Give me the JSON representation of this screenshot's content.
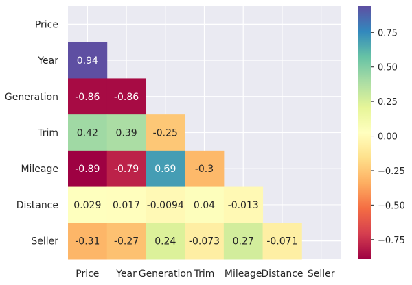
{
  "chart_data": {
    "type": "heatmap",
    "title": "",
    "xlabel": "",
    "ylabel": "",
    "rows": [
      "Price",
      "Year",
      "Generation",
      "Trim",
      "Mileage",
      "Distance",
      "Seller"
    ],
    "columns": [
      "Price",
      "Year",
      "Generation",
      "Trim",
      "Mileage",
      "Distance",
      "Seller"
    ],
    "mask": "upper-triangle-including-diagonal",
    "cells": [
      {
        "row": 1,
        "col": 0,
        "value": 0.94,
        "label": "0.94"
      },
      {
        "row": 2,
        "col": 0,
        "value": -0.86,
        "label": "-0.86"
      },
      {
        "row": 2,
        "col": 1,
        "value": -0.86,
        "label": "-0.86"
      },
      {
        "row": 3,
        "col": 0,
        "value": 0.42,
        "label": "0.42"
      },
      {
        "row": 3,
        "col": 1,
        "value": 0.39,
        "label": "0.39"
      },
      {
        "row": 3,
        "col": 2,
        "value": -0.25,
        "label": "-0.25"
      },
      {
        "row": 4,
        "col": 0,
        "value": -0.89,
        "label": "-0.89"
      },
      {
        "row": 4,
        "col": 1,
        "value": -0.79,
        "label": "-0.79"
      },
      {
        "row": 4,
        "col": 2,
        "value": 0.69,
        "label": "0.69"
      },
      {
        "row": 4,
        "col": 3,
        "value": -0.3,
        "label": "-0.3"
      },
      {
        "row": 5,
        "col": 0,
        "value": 0.029,
        "label": "0.029"
      },
      {
        "row": 5,
        "col": 1,
        "value": 0.017,
        "label": "0.017"
      },
      {
        "row": 5,
        "col": 2,
        "value": -0.0094,
        "label": "-0.0094"
      },
      {
        "row": 5,
        "col": 3,
        "value": 0.04,
        "label": "0.04"
      },
      {
        "row": 5,
        "col": 4,
        "value": -0.013,
        "label": "-0.013"
      },
      {
        "row": 6,
        "col": 0,
        "value": -0.31,
        "label": "-0.31"
      },
      {
        "row": 6,
        "col": 1,
        "value": -0.27,
        "label": "-0.27"
      },
      {
        "row": 6,
        "col": 2,
        "value": 0.24,
        "label": "0.24"
      },
      {
        "row": 6,
        "col": 3,
        "value": -0.073,
        "label": "-0.073"
      },
      {
        "row": 6,
        "col": 4,
        "value": 0.27,
        "label": "0.27"
      },
      {
        "row": 6,
        "col": 5,
        "value": -0.071,
        "label": "-0.071"
      }
    ],
    "colorbar": {
      "colormap": "Spectral",
      "vmin": -0.89,
      "vmax": 0.94,
      "ticks": [
        0.75,
        0.5,
        0.25,
        0.0,
        -0.25,
        -0.5,
        -0.75
      ],
      "tick_labels": [
        "0.75",
        "0.50",
        "0.25",
        "0.00",
        "−0.25",
        "−0.50",
        "−0.75"
      ]
    },
    "background_color": "#eaeaf2",
    "grid": true
  }
}
